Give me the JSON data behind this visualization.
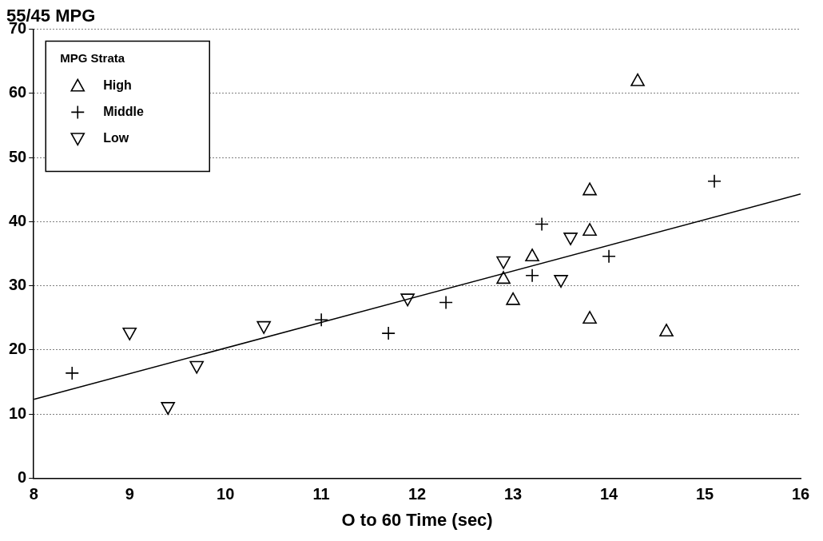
{
  "chart_data": {
    "type": "scatter",
    "title": "55/45 MPG",
    "xlabel": "O to 60 Time (sec)",
    "legend_title": "MPG Strata",
    "legend": "top left",
    "grid": "y",
    "xlim": [
      8,
      16
    ],
    "xticks": [
      8,
      9,
      10,
      11,
      12,
      13,
      14,
      15,
      16
    ],
    "ylim": [
      0,
      70
    ],
    "yticks": [
      0,
      10,
      20,
      30,
      40,
      50,
      60,
      70
    ],
    "series": [
      {
        "name": "High",
        "color": "#000000",
        "marker": "triangle",
        "x": [
          14.3,
          13.8,
          13.8,
          13.2,
          12.9,
          13.0,
          13.8,
          14.6
        ],
        "values": [
          62,
          45,
          38.7,
          34.7,
          31.2,
          27.9,
          25,
          23
        ]
      },
      {
        "name": "Middle",
        "color": "#000000",
        "marker": "cross",
        "x": [
          8.4,
          11.0,
          11.7,
          12.3,
          13.2,
          13.3,
          14.0,
          15.1
        ],
        "values": [
          16.4,
          24.7,
          22.6,
          27.4,
          31.6,
          39.6,
          34.6,
          46.3
        ]
      },
      {
        "name": "Low",
        "color": "#000000",
        "marker": "triangle-down",
        "x": [
          9.0,
          9.4,
          9.7,
          10.4,
          11.9,
          12.9,
          13.5,
          13.6
        ],
        "values": [
          22.6,
          11.0,
          17.4,
          23.6,
          27.9,
          33.7,
          30.8,
          37.4
        ]
      },
      {
        "type": "line",
        "color": "#000000",
        "marker": "none",
        "x": [
          8,
          16
        ],
        "values": [
          12.3,
          44.3
        ]
      }
    ]
  }
}
